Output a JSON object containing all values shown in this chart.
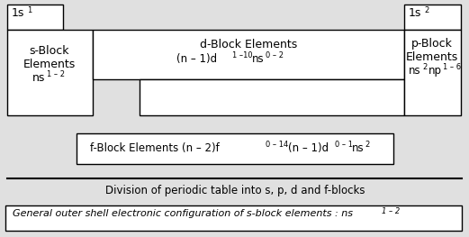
{
  "bg_color": "#e0e0e0",
  "box_fc": "white",
  "box_ec": "black",
  "title_caption": "Division of periodic table into s, p, d and f-blocks",
  "s_block_lines": [
    "s-Block",
    "Elements",
    "ns"
  ],
  "s_block_sup": "1 – 2",
  "d_block_line1": "d-Block Elements",
  "d_block_line2_a": "(n – 1)d",
  "d_block_sup2": "1 –10",
  "d_block_line2_b": "ns",
  "d_block_sup3": "0 – 2",
  "p_block_lines": [
    "p-Block",
    "Elements",
    "ns"
  ],
  "p_block_sup1": "2",
  "p_block_mid": "np",
  "p_block_sup2": "1 – 6",
  "f_block_a": "f-Block Elements (n – 2)f",
  "f_block_sup1": "0 – 14",
  "f_block_b": " (n – 1)d",
  "f_block_sup2": "0 – 1",
  "f_block_c": "ns",
  "f_block_sup3": "2",
  "hs1": "1s",
  "hs1_sup": "1",
  "hs2": "1s",
  "hs2_sup": "2",
  "bottom_main": "General outer shell electronic configuration of s-block elements : ns",
  "bottom_sup": "1 – 2"
}
